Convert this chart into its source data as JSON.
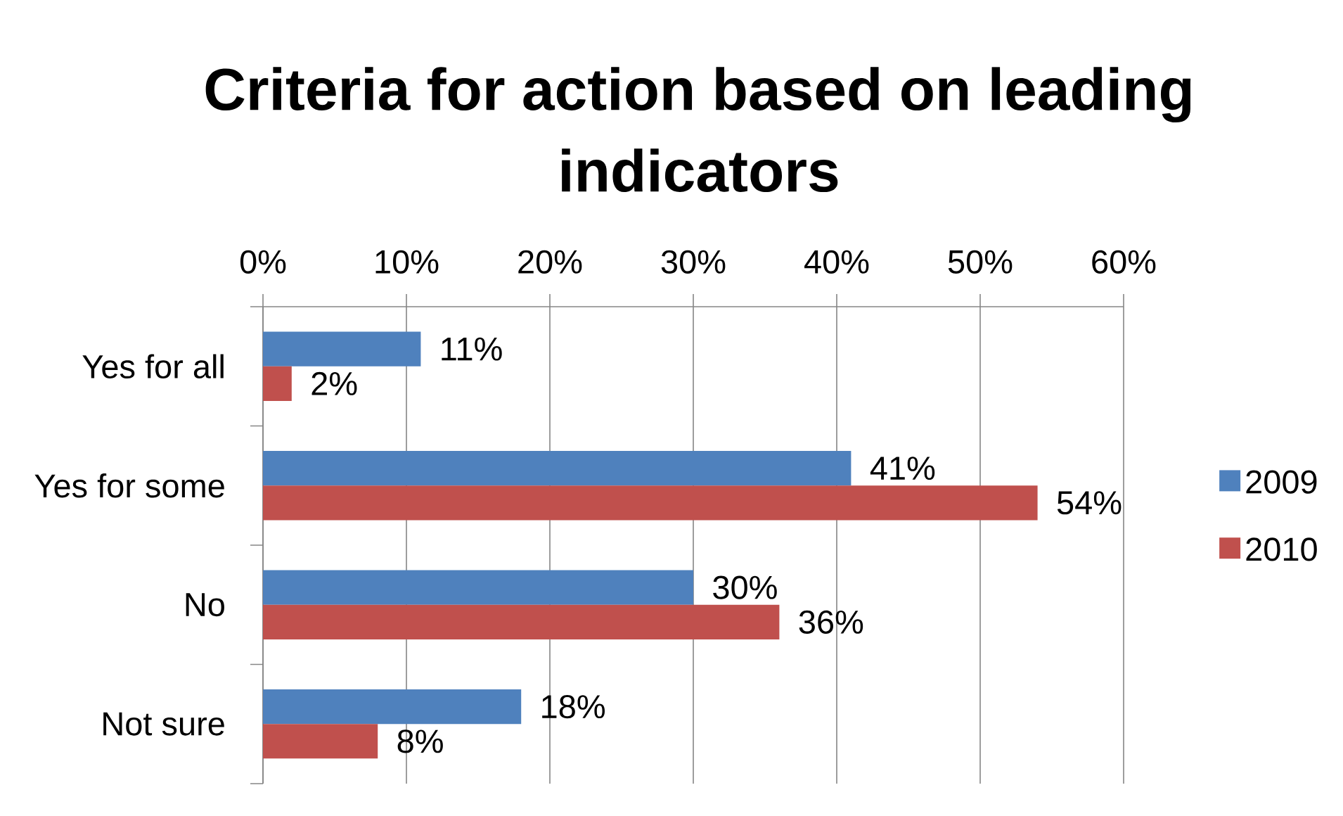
{
  "chart_data": {
    "type": "bar",
    "orientation": "horizontal",
    "title": "Criteria for action based on leading indicators",
    "categories": [
      "Yes for all",
      "Yes for some",
      "No",
      "Not sure"
    ],
    "series": [
      {
        "name": "2009",
        "color": "#4f81bd",
        "values": [
          11,
          41,
          30,
          18
        ],
        "value_labels": [
          "11%",
          "41%",
          "30%",
          "18%"
        ]
      },
      {
        "name": "2010",
        "color": "#c0504d",
        "values": [
          2,
          54,
          36,
          8
        ],
        "value_labels": [
          "2%",
          "54%",
          "36%",
          "8%"
        ]
      }
    ],
    "xlim": [
      0,
      60
    ],
    "xticks": [
      {
        "value": 0,
        "label": "0%"
      },
      {
        "value": 10,
        "label": "10%"
      },
      {
        "value": 20,
        "label": "20%"
      },
      {
        "value": 30,
        "label": "30%"
      },
      {
        "value": 40,
        "label": "40%"
      },
      {
        "value": 50,
        "label": "50%"
      },
      {
        "value": 60,
        "label": "60%"
      }
    ],
    "grid": "x",
    "legend": "right"
  }
}
